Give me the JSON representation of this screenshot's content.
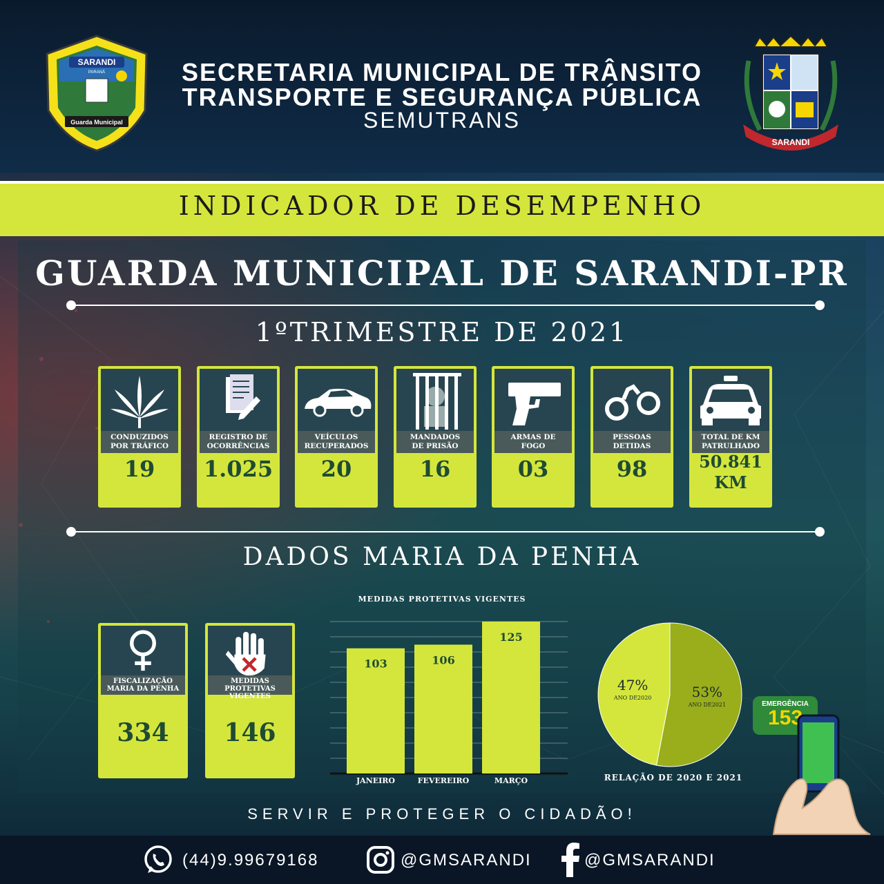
{
  "header": {
    "line1": "SECRETARIA MUNICIPAL DE TRÂNSITO",
    "line2": "TRANSPORTE E SEGURANÇA PÚBLICA",
    "line3": "SEMUTRANS",
    "left_badge": {
      "top": "SARANDI",
      "sub": "PARANÁ",
      "bottom": "Guarda Municipal"
    },
    "right_crest": {
      "banner": "SARANDI"
    }
  },
  "band_title": "INDICADOR DE DESEMPENHO",
  "main_title": "GUARDA MUNICIPAL DE SARANDI-PR",
  "period": "1ºTRIMESTRE DE 2021",
  "indicators": [
    {
      "label1": "CONDUZIDOS",
      "label2": "POR TRÁFICO",
      "value": "19",
      "icon": "cannabis-leaf-icon"
    },
    {
      "label1": "REGISTRO DE",
      "label2": "OCORRÊNCIAS",
      "value": "1.025",
      "icon": "document-icon"
    },
    {
      "label1": "VEÍCULOS",
      "label2": "RECUPERADOS",
      "value": "20",
      "icon": "car-icon"
    },
    {
      "label1": "MANDADOS",
      "label2": "DE PRISÃO",
      "value": "16",
      "icon": "prison-bars-icon"
    },
    {
      "label1": "ARMAS DE",
      "label2": "FOGO",
      "value": "03",
      "icon": "pistol-icon"
    },
    {
      "label1": "PESSOAS",
      "label2": "DETIDAS",
      "value": "98",
      "icon": "handcuffs-icon"
    },
    {
      "label1": "TOTAL DE KM",
      "label2": "PATRULHADO",
      "value": "50.841",
      "value2": "KM",
      "icon": "police-car-icon"
    }
  ],
  "maria_title": "DADOS  MARIA DA PENHA",
  "maria_cards": [
    {
      "label1": "FISCALIZAÇÃO",
      "label2": "MARIA DA PENHA",
      "value": "334",
      "icon": "female-symbol-icon"
    },
    {
      "label1": "MEDIDAS PROTETIVAS",
      "label2": "VIGENTES",
      "value": "146",
      "icon": "stop-hand-icon"
    }
  ],
  "chart_data": [
    {
      "type": "bar",
      "title": "MEDIDAS PROTETIVAS VIGENTES",
      "categories": [
        "JANEIRO",
        "FEVEREIRO",
        "MARÇO"
      ],
      "values": [
        103,
        106,
        125
      ],
      "data_labels": [
        "103",
        "106",
        "125"
      ],
      "grid": true,
      "color": "#d4e63c"
    },
    {
      "type": "pie",
      "title": "RELAÇÃO DE 2020 E 2021",
      "slices": [
        {
          "name": "ANO DE2020",
          "value": 47,
          "label": "47%",
          "color": "#d4e63c"
        },
        {
          "name": "ANO DE2021",
          "value": 53,
          "label": "53%",
          "color": "#9aad1a"
        }
      ]
    }
  ],
  "slogan": "SERVIR E PROTEGER O CIDADÃO!",
  "emergency": {
    "label": "EMERGÊNCIA",
    "number": "153"
  },
  "footer": {
    "phone": "(44)9.99679168",
    "instagram": "@GMSARANDI",
    "facebook": "@GMSARANDI"
  },
  "colors": {
    "accent": "#d4e63c",
    "value_text": "#1f4b33",
    "label_bg": "#4a5a5a",
    "footer_bg": "#0a1626"
  }
}
